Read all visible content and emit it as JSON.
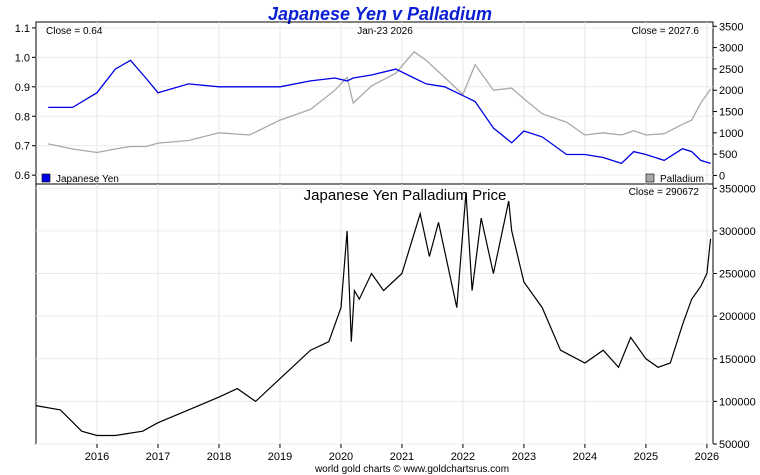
{
  "title": "Japanese Yen v Palladium",
  "footer": "world gold charts © www.goldchartsrus.com",
  "colors": {
    "title": "#0a1ed2",
    "yen": "#0000e6",
    "palladium": "#a9a9a9",
    "ratio": "#000000",
    "frame": "#000000"
  },
  "chart_data": [
    {
      "type": "line",
      "title": "",
      "header_left": "Close = 0.64",
      "header_center": "Jan-23  2026",
      "header_right": "Close = 2027.6",
      "ylim_left": [
        0.57,
        1.12
      ],
      "left_ticks": [
        "1.1",
        "1.0",
        "0.9",
        "0.8",
        "0.7",
        "0.6"
      ],
      "ylim_right": [
        -200,
        3600
      ],
      "right_ticks": [
        "3500",
        "3000",
        "2500",
        "2000",
        "1500",
        "1000",
        "500",
        "0"
      ],
      "legend": "bottom",
      "x": [
        2015.2,
        2015.6,
        2016.0,
        2016.3,
        2016.55,
        2016.8,
        2017.0,
        2017.5,
        2018.0,
        2018.5,
        2019.0,
        2019.5,
        2019.9,
        2020.1,
        2020.2,
        2020.5,
        2020.9,
        2021.2,
        2021.4,
        2021.7,
        2022.0,
        2022.2,
        2022.5,
        2022.8,
        2023.0,
        2023.3,
        2023.7,
        2024.0,
        2024.3,
        2024.6,
        2024.8,
        2025.0,
        2025.3,
        2025.6,
        2025.75,
        2025.9,
        2026.06
      ],
      "series": [
        {
          "name": "Japanese Yen",
          "axis": "left",
          "values": [
            0.83,
            0.83,
            0.88,
            0.96,
            0.99,
            0.93,
            0.88,
            0.91,
            0.9,
            0.9,
            0.9,
            0.92,
            0.93,
            0.92,
            0.93,
            0.94,
            0.96,
            0.93,
            0.91,
            0.9,
            0.87,
            0.85,
            0.76,
            0.71,
            0.75,
            0.73,
            0.67,
            0.67,
            0.66,
            0.64,
            0.68,
            0.67,
            0.65,
            0.69,
            0.68,
            0.65,
            0.64
          ]
        },
        {
          "name": "Palladium",
          "axis": "right",
          "values": [
            740,
            620,
            540,
            620,
            680,
            680,
            760,
            820,
            1000,
            950,
            1300,
            1550,
            2000,
            2300,
            1700,
            2100,
            2400,
            2900,
            2700,
            2300,
            1900,
            2600,
            2000,
            2050,
            1800,
            1450,
            1250,
            950,
            1000,
            950,
            1050,
            950,
            980,
            1200,
            1300,
            1700,
            2027.6
          ]
        }
      ]
    },
    {
      "type": "line",
      "title": "Japanese Yen Palladium Price",
      "header_right": "Close = 290672",
      "ylim": [
        50000,
        355000
      ],
      "y_ticks": [
        "350000",
        "300000",
        "250000",
        "200000",
        "150000",
        "100000",
        "50000"
      ],
      "x_ticks": [
        "2016",
        "2017",
        "2018",
        "2019",
        "2020",
        "2021",
        "2022",
        "2023",
        "2024",
        "2025",
        "2026"
      ],
      "x": [
        2015.0,
        2015.4,
        2015.75,
        2016.0,
        2016.3,
        2016.75,
        2017.0,
        2017.5,
        2018.0,
        2018.3,
        2018.6,
        2018.9,
        2019.2,
        2019.5,
        2019.8,
        2020.0,
        2020.1,
        2020.17,
        2020.22,
        2020.3,
        2020.5,
        2020.7,
        2021.0,
        2021.3,
        2021.45,
        2021.6,
        2021.9,
        2022.0,
        2022.05,
        2022.15,
        2022.3,
        2022.5,
        2022.75,
        2022.8,
        2023.0,
        2023.3,
        2023.6,
        2024.0,
        2024.3,
        2024.55,
        2024.75,
        2025.0,
        2025.2,
        2025.4,
        2025.6,
        2025.75,
        2025.9,
        2026.0,
        2026.06
      ],
      "values": [
        95000,
        90000,
        65000,
        60000,
        60000,
        65000,
        75000,
        90000,
        105000,
        115000,
        100000,
        120000,
        140000,
        160000,
        170000,
        210000,
        300000,
        170000,
        230000,
        220000,
        250000,
        230000,
        250000,
        320000,
        270000,
        310000,
        210000,
        300000,
        345000,
        230000,
        315000,
        250000,
        335000,
        300000,
        240000,
        210000,
        160000,
        145000,
        160000,
        140000,
        175000,
        150000,
        140000,
        145000,
        190000,
        220000,
        235000,
        250000,
        290672
      ]
    }
  ]
}
